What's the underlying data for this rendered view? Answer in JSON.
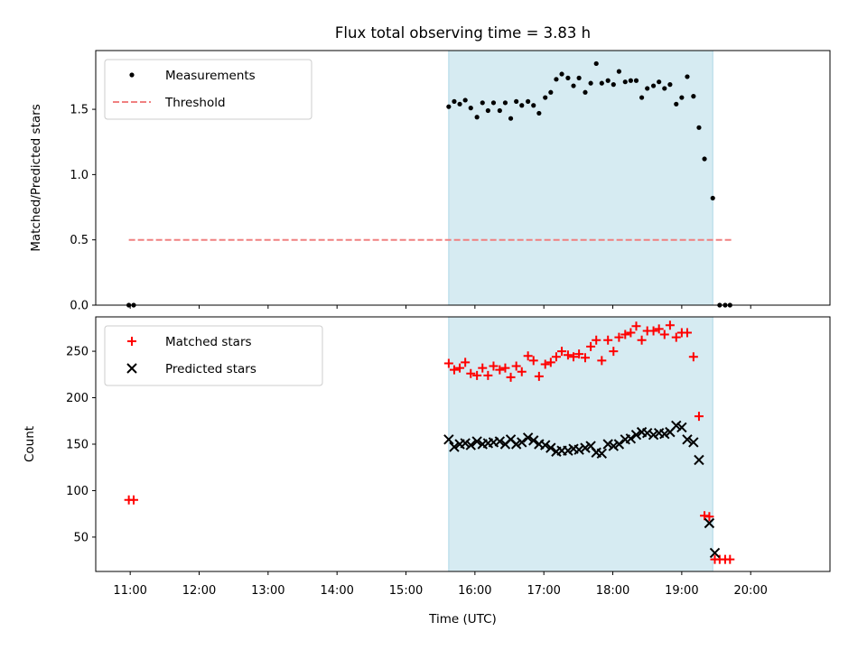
{
  "chart_data": [
    {
      "type": "scatter",
      "title": "Flux total observing time = 3.83 h",
      "xlabel": "",
      "ylabel": "Matched/Predicted stars",
      "xlim": [
        10.5,
        21.15
      ],
      "ylim": [
        0.0,
        1.95
      ],
      "yticks": [
        0.0,
        0.5,
        1.0,
        1.5
      ],
      "ytick_labels": [
        "0.0",
        "0.5",
        "1.0",
        "1.5"
      ],
      "shaded_interval": [
        15.62,
        19.45
      ],
      "legend_position": "top-left",
      "series": [
        {
          "name": "Measurements",
          "marker": "dot",
          "color": "#000000",
          "x": [
            10.98,
            11.05,
            15.62,
            15.7,
            15.78,
            15.86,
            15.94,
            16.03,
            16.11,
            16.19,
            16.27,
            16.36,
            16.44,
            16.52,
            16.6,
            16.68,
            16.77,
            16.85,
            16.93,
            17.02,
            17.1,
            17.18,
            17.26,
            17.35,
            17.43,
            17.51,
            17.6,
            17.68,
            17.76,
            17.84,
            17.93,
            18.01,
            18.09,
            18.18,
            18.26,
            18.34,
            18.42,
            18.5,
            18.59,
            18.67,
            18.75,
            18.83,
            18.92,
            19.0,
            19.08,
            19.17,
            19.25,
            19.33,
            19.45,
            19.55,
            19.63,
            19.7
          ],
          "y": [
            0.0,
            0.0,
            1.52,
            1.56,
            1.54,
            1.57,
            1.51,
            1.44,
            1.55,
            1.49,
            1.55,
            1.49,
            1.55,
            1.43,
            1.56,
            1.53,
            1.56,
            1.53,
            1.47,
            1.59,
            1.63,
            1.73,
            1.77,
            1.74,
            1.68,
            1.74,
            1.63,
            1.7,
            1.85,
            1.7,
            1.72,
            1.69,
            1.79,
            1.71,
            1.72,
            1.72,
            1.59,
            1.66,
            1.68,
            1.71,
            1.66,
            1.69,
            1.54,
            1.59,
            1.75,
            1.6,
            1.36,
            1.12,
            0.82,
            0.0,
            0.0,
            0.0
          ]
        },
        {
          "name": "Threshold",
          "marker": "dashed-line",
          "color": "#f08080",
          "x": [
            10.98,
            19.72
          ],
          "y": [
            0.5,
            0.5
          ]
        }
      ]
    },
    {
      "type": "scatter",
      "title": "",
      "xlabel": "Time (UTC)",
      "ylabel": "Count",
      "xlim": [
        10.5,
        21.15
      ],
      "ylim": [
        13,
        287
      ],
      "xticks": [
        11,
        12,
        13,
        14,
        15,
        16,
        17,
        18,
        19,
        20
      ],
      "xtick_labels": [
        "11:00",
        "12:00",
        "13:00",
        "14:00",
        "15:00",
        "16:00",
        "17:00",
        "18:00",
        "19:00",
        "20:00"
      ],
      "yticks": [
        50,
        100,
        150,
        200,
        250
      ],
      "ytick_labels": [
        "50",
        "100",
        "150",
        "200",
        "250"
      ],
      "shaded_interval": [
        15.62,
        19.45
      ],
      "legend_position": "top-left",
      "series": [
        {
          "name": "Matched stars",
          "marker": "plus",
          "color": "#ff0000",
          "x": [
            10.98,
            11.05,
            15.62,
            15.7,
            15.78,
            15.86,
            15.94,
            16.03,
            16.11,
            16.19,
            16.27,
            16.36,
            16.44,
            16.52,
            16.6,
            16.68,
            16.77,
            16.85,
            16.93,
            17.02,
            17.1,
            17.18,
            17.26,
            17.35,
            17.43,
            17.51,
            17.6,
            17.68,
            17.76,
            17.84,
            17.93,
            18.01,
            18.09,
            18.18,
            18.26,
            18.34,
            18.42,
            18.5,
            18.59,
            18.67,
            18.75,
            18.83,
            18.92,
            19.0,
            19.08,
            19.17,
            19.25,
            19.33,
            19.4,
            19.48,
            19.55,
            19.63,
            19.7
          ],
          "y": [
            90,
            90,
            237,
            230,
            232,
            238,
            226,
            224,
            232,
            224,
            234,
            230,
            232,
            222,
            234,
            228,
            245,
            240,
            223,
            236,
            238,
            244,
            250,
            246,
            244,
            247,
            243,
            255,
            262,
            240,
            262,
            250,
            265,
            268,
            270,
            277,
            262,
            272,
            272,
            274,
            268,
            278,
            265,
            270,
            270,
            244,
            180,
            73,
            72,
            26,
            26,
            26,
            26
          ]
        },
        {
          "name": "Predicted stars",
          "marker": "x",
          "color": "#000000",
          "x": [
            15.62,
            15.7,
            15.78,
            15.86,
            15.94,
            16.03,
            16.11,
            16.19,
            16.27,
            16.36,
            16.44,
            16.52,
            16.6,
            16.68,
            16.77,
            16.85,
            16.93,
            17.02,
            17.1,
            17.18,
            17.26,
            17.35,
            17.43,
            17.51,
            17.6,
            17.68,
            17.76,
            17.84,
            17.93,
            18.01,
            18.09,
            18.18,
            18.26,
            18.34,
            18.42,
            18.5,
            18.59,
            18.67,
            18.75,
            18.83,
            18.92,
            19.0,
            19.08,
            19.17,
            19.25,
            19.4,
            19.48
          ],
          "y": [
            155,
            147,
            150,
            151,
            149,
            153,
            150,
            151,
            152,
            153,
            150,
            155,
            150,
            152,
            157,
            154,
            150,
            149,
            146,
            142,
            143,
            143,
            145,
            144,
            146,
            148,
            141,
            140,
            150,
            148,
            150,
            155,
            156,
            160,
            163,
            162,
            160,
            162,
            161,
            163,
            170,
            168,
            155,
            152,
            133,
            65,
            33
          ]
        }
      ]
    }
  ]
}
